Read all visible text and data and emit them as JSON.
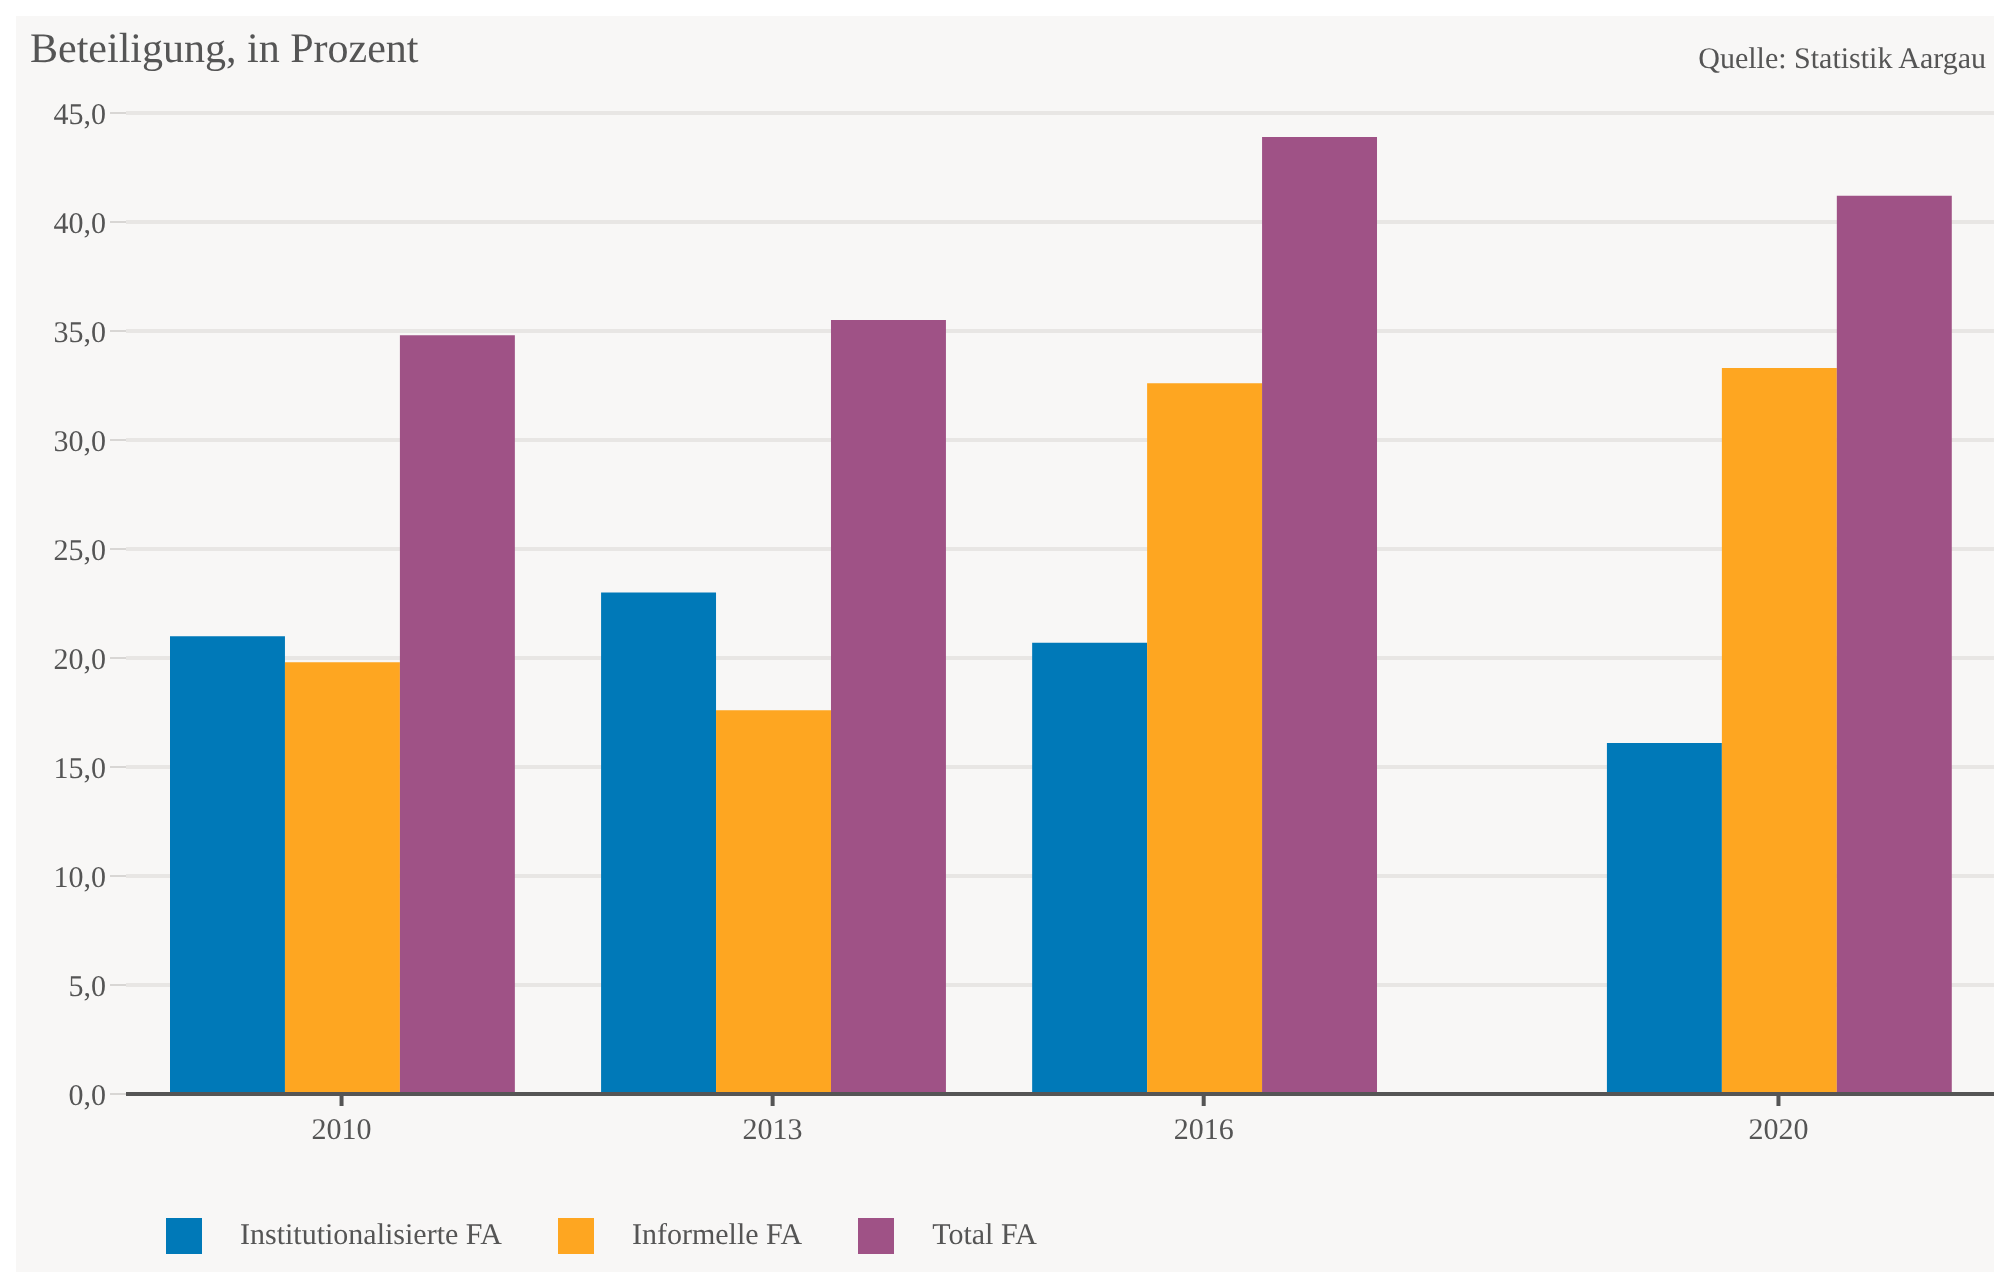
{
  "chart_data": {
    "type": "bar",
    "title": "Beteiligung, in Prozent",
    "annotations": [
      "Quelle: Statistik Aargau"
    ],
    "x": [
      2010,
      2013,
      2016,
      2020
    ],
    "xlim": [
      2008.5,
      2021.5
    ],
    "xticks": [
      2010,
      2013,
      2016,
      2020
    ],
    "series": [
      {
        "name": "Institutionalisierte FA",
        "color": "#0079b8",
        "values": [
          21.0,
          23.0,
          20.7,
          16.1
        ]
      },
      {
        "name": "Informelle FA",
        "color": "#fea621",
        "values": [
          19.8,
          17.6,
          32.6,
          33.3
        ]
      },
      {
        "name": "Total FA",
        "color": "#9f5286",
        "values": [
          34.8,
          35.5,
          43.9,
          41.2
        ]
      }
    ],
    "ylim": [
      0,
      45
    ],
    "yticks": [
      {
        "value": 0,
        "label": "0,0"
      },
      {
        "value": 5,
        "label": "5,0"
      },
      {
        "value": 10,
        "label": "10,0"
      },
      {
        "value": 15,
        "label": "15,0"
      },
      {
        "value": 20,
        "label": "20,0"
      },
      {
        "value": 25,
        "label": "25,0"
      },
      {
        "value": 30,
        "label": "30,0"
      },
      {
        "value": 35,
        "label": "35,0"
      },
      {
        "value": 40,
        "label": "40,0"
      },
      {
        "value": 45,
        "label": "45,0"
      }
    ],
    "grid": "y",
    "legend": "bottom left"
  }
}
